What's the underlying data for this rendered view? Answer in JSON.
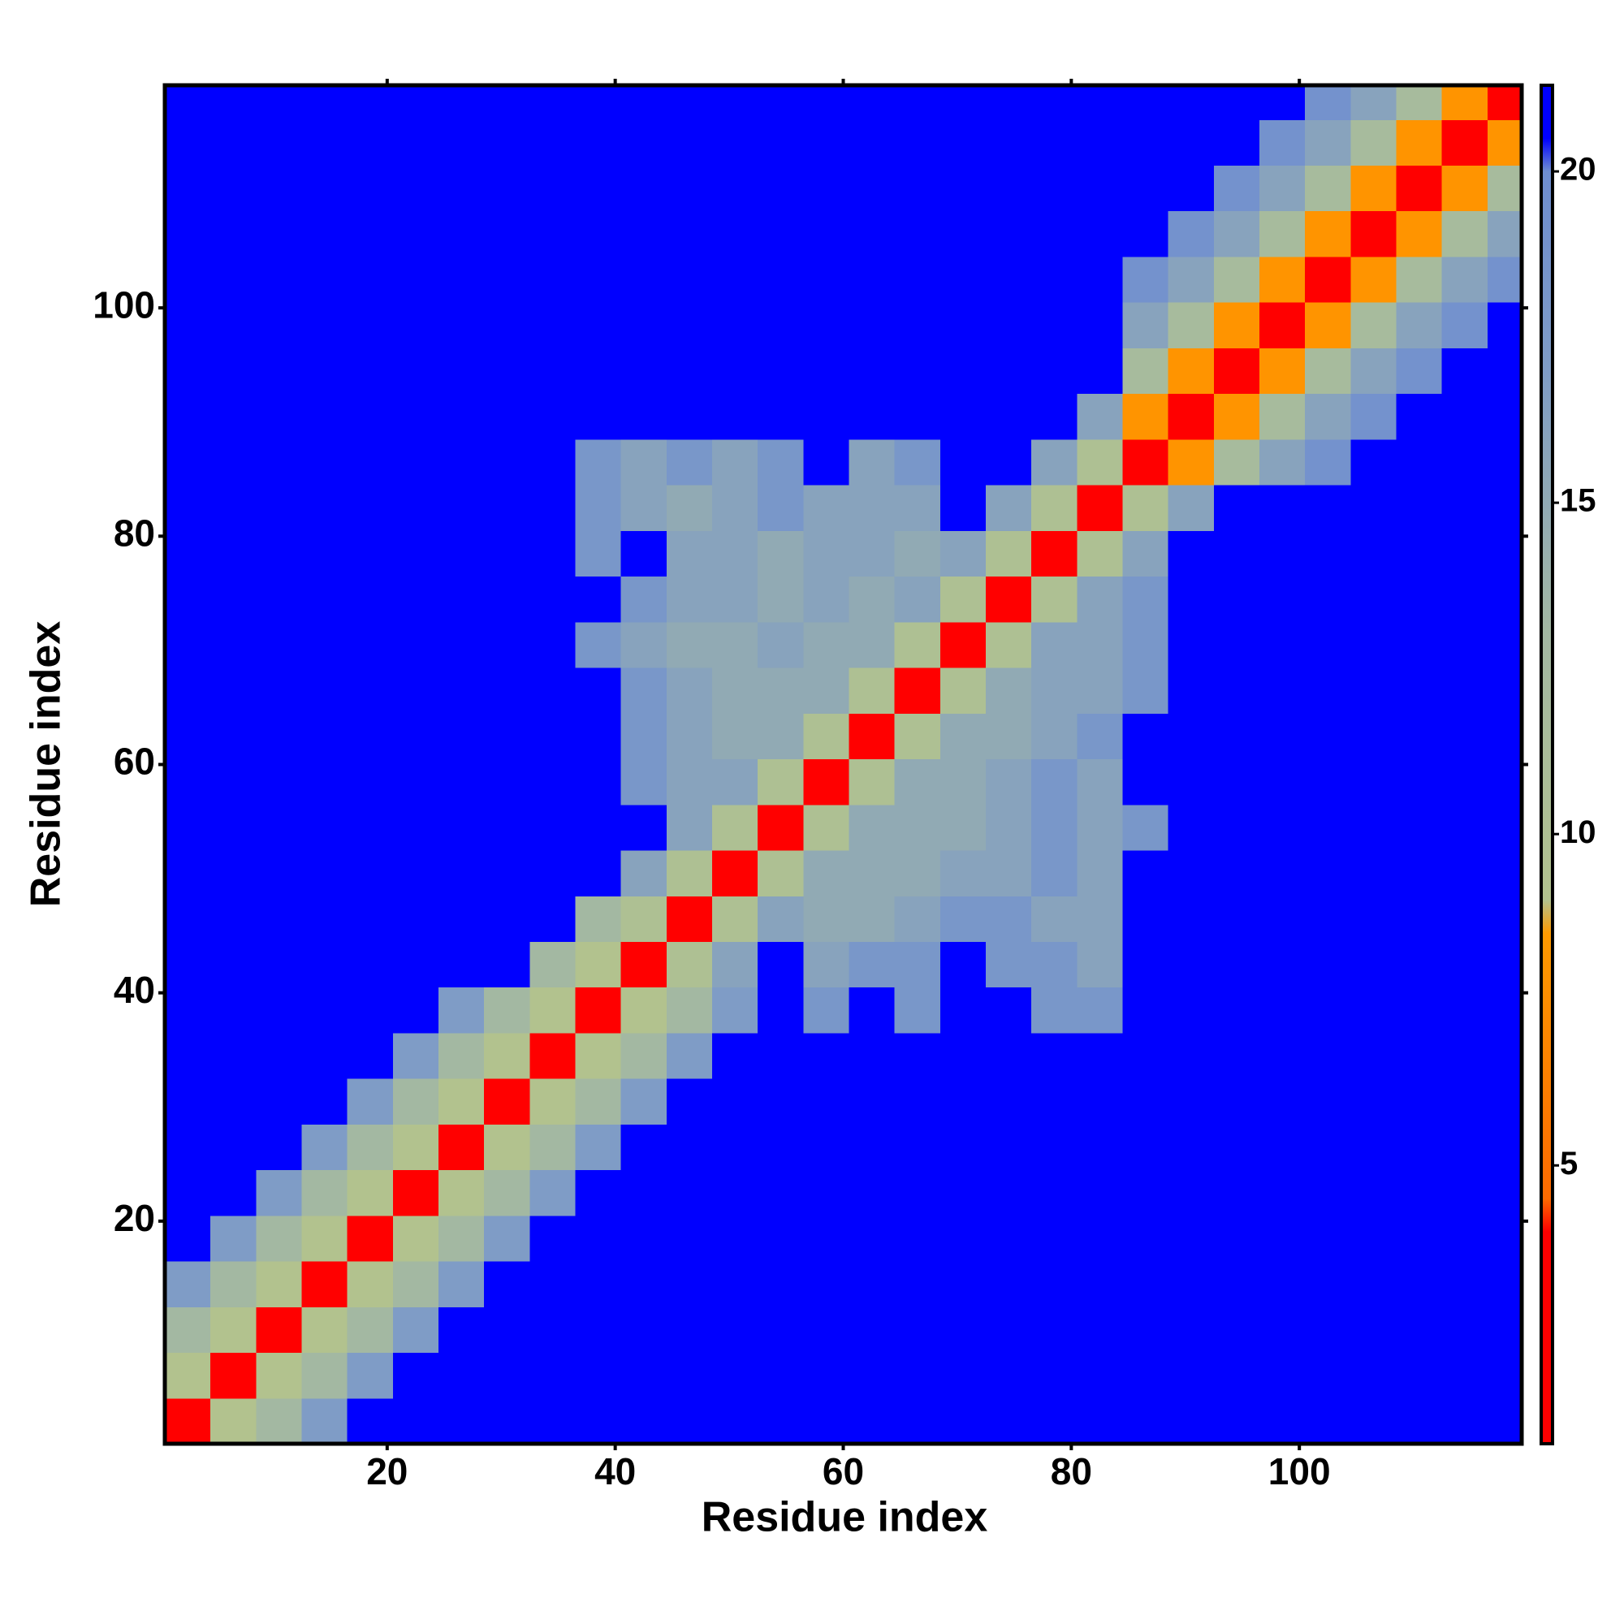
{
  "chart_data": {
    "type": "heatmap",
    "xlabel": "Residue index",
    "ylabel": "Residue index",
    "xlim": [
      0.5,
      119.5
    ],
    "ylim": [
      0.5,
      119.5
    ],
    "xticks": [
      20,
      40,
      60,
      80,
      100
    ],
    "yticks": [
      20,
      40,
      60,
      80,
      100
    ],
    "xbins": [
      0.5,
      4.5,
      8.5,
      12.5,
      16.5,
      20.5,
      24.5,
      28.5,
      32.5,
      36.5,
      40.5,
      44.5,
      48.5,
      52.5,
      56.5,
      60.5,
      64.5,
      68.5,
      72.5,
      76.5,
      80.5,
      84.5,
      88.5,
      92.5,
      96.5,
      100.5,
      104.5,
      108.5,
      112.5,
      116.5,
      119.5
    ],
    "ybins": [
      0.5,
      4.5,
      8.5,
      12.5,
      16.5,
      20.5,
      24.5,
      28.5,
      32.5,
      36.5,
      40.5,
      44.5,
      48.5,
      52.5,
      56.5,
      60.5,
      64.5,
      68.5,
      72.5,
      76.5,
      80.5,
      84.5,
      88.5,
      92.5,
      96.5,
      100.5,
      104.5,
      108.5,
      112.5,
      116.5,
      119.5
    ],
    "zlim": [
      0.8,
      21.3
    ],
    "zticks": [
      5,
      10,
      15,
      20
    ],
    "colorscale": [
      [
        0.8,
        "#ff0000"
      ],
      [
        4,
        "#ff0000"
      ],
      [
        4.5,
        "#ff6a00"
      ],
      [
        8.5,
        "#ff9a00"
      ],
      [
        9,
        "#b2c28e"
      ],
      [
        13,
        "#a3b8a2"
      ],
      [
        17,
        "#7f9cc6"
      ],
      [
        20,
        "#6e8dd0"
      ],
      [
        20.5,
        "#0000ff"
      ],
      [
        21.3,
        "#0000ff"
      ]
    ],
    "z": [
      [
        2,
        9,
        13,
        17,
        21,
        21,
        21,
        21,
        21,
        21,
        21,
        21,
        21,
        21,
        21,
        21,
        21,
        21,
        21,
        21,
        21,
        21,
        21,
        21,
        21,
        21,
        21,
        21,
        21,
        21
      ],
      [
        9,
        2,
        9,
        13,
        17,
        21,
        21,
        21,
        21,
        21,
        21,
        21,
        21,
        21,
        21,
        21,
        21,
        21,
        21,
        21,
        21,
        21,
        21,
        21,
        21,
        21,
        21,
        21,
        21,
        21
      ],
      [
        13,
        9,
        2,
        9,
        13,
        17,
        21,
        21,
        21,
        21,
        21,
        21,
        21,
        21,
        21,
        21,
        21,
        21,
        21,
        21,
        21,
        21,
        21,
        21,
        21,
        21,
        21,
        21,
        21,
        21
      ],
      [
        17,
        13,
        9,
        2,
        9,
        13,
        17,
        21,
        21,
        21,
        21,
        21,
        21,
        21,
        21,
        21,
        21,
        21,
        21,
        21,
        21,
        21,
        21,
        21,
        21,
        21,
        21,
        21,
        21,
        21
      ],
      [
        21,
        17,
        13,
        9,
        2,
        9,
        13,
        17,
        21,
        21,
        21,
        21,
        21,
        21,
        21,
        21,
        21,
        21,
        21,
        21,
        21,
        21,
        21,
        21,
        21,
        21,
        21,
        21,
        21,
        21
      ],
      [
        21,
        21,
        17,
        13,
        9,
        2,
        9,
        13,
        17,
        21,
        21,
        21,
        21,
        21,
        21,
        21,
        21,
        21,
        21,
        21,
        21,
        21,
        21,
        21,
        21,
        21,
        21,
        21,
        21,
        21
      ],
      [
        21,
        21,
        21,
        17,
        13,
        9,
        2,
        9,
        13,
        17,
        21,
        21,
        21,
        21,
        21,
        21,
        21,
        21,
        21,
        21,
        21,
        21,
        21,
        21,
        21,
        21,
        21,
        21,
        21,
        21
      ],
      [
        21,
        21,
        21,
        21,
        17,
        13,
        9,
        2,
        9,
        13,
        17,
        21,
        21,
        21,
        21,
        21,
        21,
        21,
        21,
        21,
        21,
        21,
        21,
        21,
        21,
        21,
        21,
        21,
        21,
        21
      ],
      [
        21,
        21,
        21,
        21,
        21,
        17,
        13,
        9,
        2,
        9,
        13,
        17,
        21,
        21,
        21,
        21,
        21,
        21,
        21,
        21,
        21,
        21,
        21,
        21,
        21,
        21,
        21,
        21,
        21,
        21
      ],
      [
        21,
        21,
        21,
        21,
        21,
        21,
        17,
        13,
        9,
        2,
        9,
        13,
        17,
        21,
        18,
        21,
        18,
        21,
        21,
        18,
        18,
        21,
        21,
        21,
        21,
        21,
        21,
        21,
        21,
        21
      ],
      [
        21,
        21,
        21,
        21,
        21,
        21,
        21,
        21,
        13,
        9,
        2,
        10,
        16,
        21,
        16,
        18,
        18,
        21,
        18,
        18,
        16,
        21,
        21,
        21,
        21,
        21,
        21,
        21,
        21,
        21
      ],
      [
        21,
        21,
        21,
        21,
        21,
        21,
        21,
        21,
        21,
        13,
        10,
        2,
        10,
        16,
        15,
        15,
        16,
        18,
        18,
        16,
        16,
        21,
        21,
        21,
        21,
        21,
        21,
        21,
        21,
        21
      ],
      [
        21,
        21,
        21,
        21,
        21,
        21,
        21,
        21,
        21,
        21,
        16,
        10,
        2,
        10,
        15,
        15,
        15,
        16,
        16,
        18,
        16,
        21,
        21,
        21,
        21,
        21,
        21,
        21,
        21,
        21
      ],
      [
        21,
        21,
        21,
        21,
        21,
        21,
        21,
        21,
        21,
        21,
        21,
        16,
        10,
        2,
        10,
        15,
        15,
        15,
        16,
        18,
        16,
        18,
        21,
        21,
        21,
        21,
        21,
        21,
        21,
        21
      ],
      [
        21,
        21,
        21,
        21,
        21,
        21,
        21,
        21,
        21,
        21,
        18,
        16,
        16,
        10,
        2,
        10,
        15,
        15,
        16,
        18,
        16,
        21,
        21,
        21,
        21,
        21,
        21,
        21,
        21,
        21
      ],
      [
        21,
        21,
        21,
        21,
        21,
        21,
        21,
        21,
        21,
        21,
        18,
        16,
        15,
        15,
        10,
        2,
        10,
        15,
        15,
        16,
        18,
        21,
        21,
        21,
        21,
        21,
        21,
        21,
        21,
        21
      ],
      [
        21,
        21,
        21,
        21,
        21,
        21,
        21,
        21,
        21,
        21,
        18,
        16,
        15,
        15,
        15,
        10,
        2,
        10,
        15,
        16,
        16,
        18,
        21,
        21,
        21,
        21,
        21,
        21,
        21,
        21
      ],
      [
        21,
        21,
        21,
        21,
        21,
        21,
        21,
        21,
        21,
        18,
        16,
        15,
        15,
        16,
        15,
        15,
        10,
        2,
        10,
        16,
        16,
        18,
        21,
        21,
        21,
        21,
        21,
        21,
        21,
        21
      ],
      [
        21,
        21,
        21,
        21,
        21,
        21,
        21,
        21,
        21,
        21,
        18,
        16,
        16,
        15,
        16,
        15,
        16,
        10,
        2,
        10,
        16,
        18,
        21,
        21,
        21,
        21,
        21,
        21,
        21,
        21
      ],
      [
        21,
        21,
        21,
        21,
        21,
        21,
        21,
        21,
        21,
        18,
        21,
        16,
        16,
        15,
        16,
        16,
        15,
        16,
        10,
        2,
        10,
        16,
        21,
        21,
        21,
        21,
        21,
        21,
        21,
        21
      ],
      [
        21,
        21,
        21,
        21,
        21,
        21,
        21,
        21,
        21,
        18,
        16,
        15,
        16,
        18,
        16,
        16,
        16,
        21,
        16,
        10,
        2,
        10,
        16,
        21,
        21,
        21,
        21,
        21,
        21,
        21
      ],
      [
        21,
        21,
        21,
        21,
        21,
        21,
        21,
        21,
        21,
        18,
        16,
        18,
        16,
        18,
        21,
        16,
        18,
        21,
        21,
        16,
        10,
        2,
        8,
        12,
        16,
        19,
        21,
        21,
        21,
        21
      ],
      [
        21,
        21,
        21,
        21,
        21,
        21,
        21,
        21,
        21,
        21,
        21,
        21,
        21,
        21,
        21,
        21,
        21,
        21,
        21,
        21,
        16,
        8,
        2,
        8,
        12,
        16,
        19,
        21,
        21,
        21
      ],
      [
        21,
        21,
        21,
        21,
        21,
        21,
        21,
        21,
        21,
        21,
        21,
        21,
        21,
        21,
        21,
        21,
        21,
        21,
        21,
        21,
        21,
        12,
        8,
        2,
        8,
        12,
        16,
        19,
        21,
        21
      ],
      [
        21,
        21,
        21,
        21,
        21,
        21,
        21,
        21,
        21,
        21,
        21,
        21,
        21,
        21,
        21,
        21,
        21,
        21,
        21,
        21,
        21,
        16,
        12,
        8,
        2,
        8,
        12,
        16,
        19,
        21
      ],
      [
        21,
        21,
        21,
        21,
        21,
        21,
        21,
        21,
        21,
        21,
        21,
        21,
        21,
        21,
        21,
        21,
        21,
        21,
        21,
        21,
        21,
        19,
        16,
        12,
        8,
        2,
        8,
        12,
        16,
        19
      ],
      [
        21,
        21,
        21,
        21,
        21,
        21,
        21,
        21,
        21,
        21,
        21,
        21,
        21,
        21,
        21,
        21,
        21,
        21,
        21,
        21,
        21,
        21,
        19,
        16,
        12,
        8,
        2,
        8,
        12,
        16
      ],
      [
        21,
        21,
        21,
        21,
        21,
        21,
        21,
        21,
        21,
        21,
        21,
        21,
        21,
        21,
        21,
        21,
        21,
        21,
        21,
        21,
        21,
        21,
        21,
        19,
        16,
        12,
        8,
        2,
        8,
        12
      ],
      [
        21,
        21,
        21,
        21,
        21,
        21,
        21,
        21,
        21,
        21,
        21,
        21,
        21,
        21,
        21,
        21,
        21,
        21,
        21,
        21,
        21,
        21,
        21,
        21,
        19,
        16,
        12,
        8,
        2,
        8
      ],
      [
        21,
        21,
        21,
        21,
        21,
        21,
        21,
        21,
        21,
        21,
        21,
        21,
        21,
        21,
        21,
        21,
        21,
        21,
        21,
        21,
        21,
        21,
        21,
        21,
        21,
        19,
        16,
        12,
        8,
        2
      ]
    ]
  }
}
